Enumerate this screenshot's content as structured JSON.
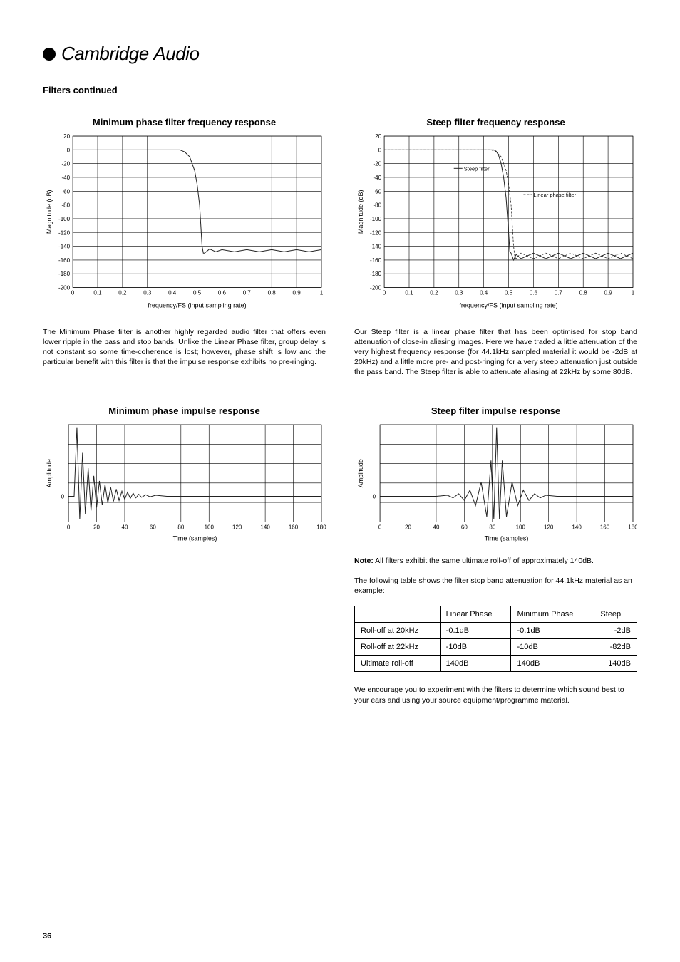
{
  "logo": {
    "brand": "Cambridge",
    "brand2": "Audio"
  },
  "section_title": "Filters continued",
  "page_number": "36",
  "charts": {
    "min_phase_freq": {
      "title": "Minimum phase filter frequency response",
      "type": "line",
      "ylabel": "Magnitude (dB)",
      "xlabel": "frequency/FS (input sampling rate)",
      "xlim": [
        0,
        1
      ],
      "xtick_step": 0.1,
      "ylim": [
        -200,
        20
      ],
      "ytick_step": 20,
      "xticks": [
        "0",
        "0.1",
        "0.2",
        "0.3",
        "0.4",
        "0.5",
        "0.6",
        "0.7",
        "0.8",
        "0.9",
        "1"
      ],
      "yticks": [
        "20",
        "0",
        "-20",
        "-40",
        "-60",
        "-80",
        "-100",
        "-120",
        "-140",
        "-160",
        "-180",
        "-200"
      ],
      "series": [
        {
          "name": "min-phase",
          "color": "#222222",
          "points": [
            [
              0,
              0
            ],
            [
              0.43,
              0
            ],
            [
              0.45,
              -3
            ],
            [
              0.47,
              -10
            ],
            [
              0.49,
              -30
            ],
            [
              0.5,
              -50
            ],
            [
              0.51,
              -80
            ],
            [
              0.52,
              -140
            ],
            [
              0.525,
              -150
            ],
            [
              0.53,
              -150
            ],
            [
              0.55,
              -144
            ],
            [
              0.575,
              -148
            ],
            [
              0.6,
              -145
            ],
            [
              0.65,
              -148
            ],
            [
              0.7,
              -145
            ],
            [
              0.75,
              -148
            ],
            [
              0.8,
              -145
            ],
            [
              0.85,
              -148
            ],
            [
              0.9,
              -145
            ],
            [
              0.95,
              -148
            ],
            [
              1,
              -145
            ]
          ]
        }
      ],
      "background_color": "#ffffff",
      "grid_color": "#000000"
    },
    "steep_freq": {
      "title": "Steep filter frequency response",
      "type": "line",
      "ylabel": "Magnitude (dB)",
      "xlabel": "frequency/FS (input sampling rate)",
      "xlim": [
        0,
        1
      ],
      "xtick_step": 0.1,
      "ylim": [
        -200,
        20
      ],
      "ytick_step": 20,
      "xticks": [
        "0",
        "0.1",
        "0.2",
        "0.3",
        "0.4",
        "0.5",
        "0.6",
        "0.7",
        "0.8",
        "0.9",
        "1"
      ],
      "yticks": [
        "20",
        "0",
        "-20",
        "-40",
        "-60",
        "-80",
        "-100",
        "-120",
        "-140",
        "-160",
        "-180",
        "-200"
      ],
      "legend": [
        {
          "label": "Steep filter",
          "style": "solid"
        },
        {
          "label": "Linear phase filter",
          "style": "dash"
        }
      ],
      "series": [
        {
          "name": "steep",
          "color": "#222222",
          "points": [
            [
              0,
              0
            ],
            [
              0.44,
              0
            ],
            [
              0.45,
              -2
            ],
            [
              0.46,
              -8
            ],
            [
              0.47,
              -20
            ],
            [
              0.48,
              -40
            ],
            [
              0.49,
              -70
            ],
            [
              0.5,
              -120
            ],
            [
              0.505,
              -148
            ],
            [
              0.51,
              -150
            ],
            [
              0.52,
              -160
            ],
            [
              0.53,
              -152
            ],
            [
              0.55,
              -158
            ],
            [
              0.6,
              -150
            ],
            [
              0.65,
              -158
            ],
            [
              0.7,
              -150
            ],
            [
              0.75,
              -158
            ],
            [
              0.8,
              -150
            ],
            [
              0.85,
              -158
            ],
            [
              0.9,
              -150
            ],
            [
              0.95,
              -158
            ],
            [
              1,
              -150
            ]
          ]
        },
        {
          "name": "linear",
          "color": "#222222",
          "dash": true,
          "points": [
            [
              0,
              0
            ],
            [
              0.43,
              0
            ],
            [
              0.45,
              -3
            ],
            [
              0.47,
              -10
            ],
            [
              0.49,
              -30
            ],
            [
              0.5,
              -50
            ],
            [
              0.51,
              -80
            ],
            [
              0.52,
              -140
            ],
            [
              0.525,
              -155
            ],
            [
              0.53,
              -158
            ],
            [
              0.55,
              -150
            ],
            [
              0.6,
              -158
            ],
            [
              0.65,
              -150
            ],
            [
              0.7,
              -158
            ],
            [
              0.75,
              -150
            ],
            [
              0.8,
              -158
            ],
            [
              0.85,
              -150
            ],
            [
              0.9,
              -158
            ],
            [
              0.95,
              -150
            ],
            [
              1,
              -158
            ]
          ]
        }
      ]
    },
    "min_phase_impulse": {
      "title": "Minimum phase impulse response",
      "type": "line",
      "ylabel": "Amplitude",
      "xlabel": "Time (samples)",
      "xlim": [
        0,
        180
      ],
      "xtick_step": 20,
      "ylim": [
        -0.5,
        1.4
      ],
      "xticks": [
        "0",
        "20",
        "40",
        "60",
        "80",
        "100",
        "120",
        "140",
        "160",
        "180"
      ],
      "yticks_labels": [
        "0"
      ],
      "series": [
        {
          "name": "impulse",
          "color": "#222222",
          "points": [
            [
              0,
              0
            ],
            [
              4,
              0
            ],
            [
              6,
              1.35
            ],
            [
              8,
              -0.45
            ],
            [
              10,
              0.85
            ],
            [
              12,
              -0.35
            ],
            [
              14,
              0.55
            ],
            [
              16,
              -0.28
            ],
            [
              18,
              0.4
            ],
            [
              20,
              -0.22
            ],
            [
              22,
              0.3
            ],
            [
              24,
              -0.17
            ],
            [
              26,
              0.23
            ],
            [
              28,
              -0.13
            ],
            [
              30,
              0.18
            ],
            [
              32,
              -0.1
            ],
            [
              34,
              0.14
            ],
            [
              36,
              -0.08
            ],
            [
              38,
              0.1
            ],
            [
              40,
              -0.06
            ],
            [
              42,
              0.08
            ],
            [
              44,
              -0.04
            ],
            [
              46,
              0.06
            ],
            [
              48,
              -0.03
            ],
            [
              50,
              0.04
            ],
            [
              52,
              -0.02
            ],
            [
              55,
              0.03
            ],
            [
              58,
              -0.01
            ],
            [
              62,
              0.02
            ],
            [
              70,
              0
            ],
            [
              180,
              0
            ]
          ]
        }
      ]
    },
    "steep_impulse": {
      "title": "Steep filter impulse response",
      "type": "line",
      "ylabel": "Amplitude",
      "xlabel": "Time (samples)",
      "xlim": [
        0,
        180
      ],
      "xtick_step": 20,
      "ylim": [
        -0.5,
        1.4
      ],
      "xticks": [
        "0",
        "20",
        "40",
        "60",
        "80",
        "100",
        "120",
        "140",
        "160",
        "180"
      ],
      "yticks_labels": [
        "0"
      ],
      "series": [
        {
          "name": "impulse",
          "color": "#222222",
          "points": [
            [
              0,
              0
            ],
            [
              40,
              0
            ],
            [
              48,
              0.02
            ],
            [
              52,
              -0.03
            ],
            [
              56,
              0.05
            ],
            [
              60,
              -0.08
            ],
            [
              64,
              0.12
            ],
            [
              68,
              -0.18
            ],
            [
              72,
              0.28
            ],
            [
              76,
              -0.4
            ],
            [
              79,
              0.7
            ],
            [
              81,
              -0.45
            ],
            [
              83,
              1.35
            ],
            [
              85,
              -0.45
            ],
            [
              87,
              0.7
            ],
            [
              90,
              -0.4
            ],
            [
              94,
              0.28
            ],
            [
              98,
              -0.18
            ],
            [
              102,
              0.12
            ],
            [
              106,
              -0.08
            ],
            [
              110,
              0.05
            ],
            [
              114,
              -0.03
            ],
            [
              118,
              0.02
            ],
            [
              126,
              0
            ],
            [
              180,
              0
            ]
          ]
        }
      ]
    }
  },
  "paragraphs": {
    "min_phase": "The Minimum Phase filter is another highly regarded audio filter that offers even lower ripple in the pass and stop bands. Unlike the Linear Phase filter, group delay is not constant so some time-coherence is lost; however, phase shift is low and the particular benefit with this filter is that the impulse response exhibits no pre-ringing.",
    "steep": "Our Steep filter is a linear phase filter that has been optimised for stop band attenuation of close-in aliasing images. Here we have traded a little attenuation of the very highest frequency response (for 44.1kHz sampled material it would be -2dB at 20kHz) and a little more pre- and post-ringing for a very steep attenuation just outside the pass band. The Steep filter is able to attenuate aliasing at 22kHz by some 80dB.",
    "note_bold": "Note:",
    "note1": " All filters exhibit the same ultimate roll-off of approximately 140dB.",
    "note2": "The following table shows the filter stop band attenuation for 44.1kHz material as an example:",
    "closing": "We encourage you to experiment with the filters to determine which sound best to your ears and using your source equipment/programme material."
  },
  "table": {
    "columns": [
      "",
      "Linear Phase",
      "Minimum Phase",
      "Steep"
    ],
    "rows": [
      [
        "Roll-off at 20kHz",
        "-0.1dB",
        "-0.1dB",
        "-2dB"
      ],
      [
        "Roll-off at 22kHz",
        "-10dB",
        "-10dB",
        "-82dB"
      ],
      [
        "Ultimate roll-off",
        "140dB",
        "140dB",
        "140dB"
      ]
    ]
  }
}
